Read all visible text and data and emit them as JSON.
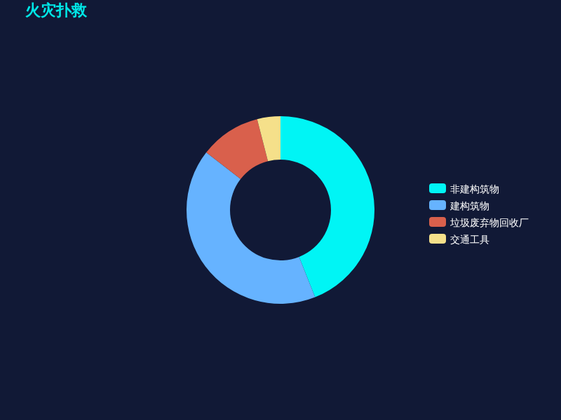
{
  "chart_data": {
    "type": "donut",
    "title": "火灾扑救",
    "categories": [
      "非建构筑物",
      "建构筑物",
      "垃圾废弃物回收厂",
      "交通工具"
    ],
    "values": [
      44,
      41.5,
      10.5,
      4
    ],
    "colors": [
      "#00f5f5",
      "#66b3ff",
      "#d9604c",
      "#f5e08a"
    ],
    "legend": "right"
  }
}
